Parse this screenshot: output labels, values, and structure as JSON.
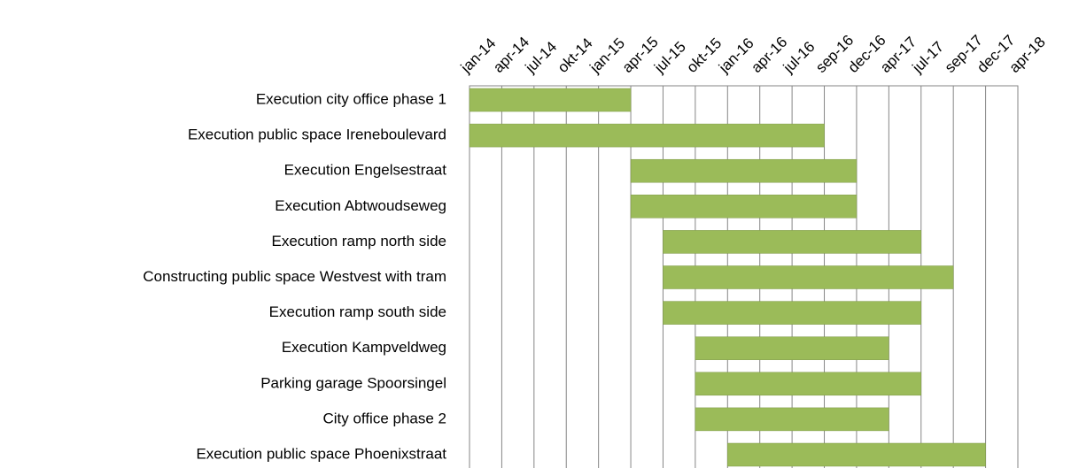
{
  "chart_data": {
    "type": "gantt",
    "categories": [
      "Execution city office phase 1",
      "Execution public space Ireneboulevard",
      "Execution Engelsestraat",
      "Execution Abtwoudseweg",
      "Execution ramp north side",
      "Constructing public space Westvest with tram",
      "Execution ramp south side",
      "Execution Kampveldweg",
      "Parking garage Spoorsingel",
      "City office phase 2",
      "Execution public space Phoenixstraat"
    ],
    "start": [
      0,
      0,
      5,
      5,
      6,
      6,
      6,
      7,
      7,
      7,
      8
    ],
    "end": [
      5,
      11,
      12,
      12,
      14,
      15,
      14,
      13,
      14,
      13,
      16
    ],
    "color": "#9bbb59",
    "xlim": [
      0,
      17
    ],
    "xticks": [
      {
        "value": 0,
        "label": "jan-14"
      },
      {
        "value": 1,
        "label": "apr-14"
      },
      {
        "value": 2,
        "label": "jul-14"
      },
      {
        "value": 3,
        "label": "okt-14"
      },
      {
        "value": 4,
        "label": "jan-15"
      },
      {
        "value": 5,
        "label": "apr-15"
      },
      {
        "value": 6,
        "label": "jul-15"
      },
      {
        "value": 7,
        "label": "okt-15"
      },
      {
        "value": 8,
        "label": "jan-16"
      },
      {
        "value": 9,
        "label": "apr-16"
      },
      {
        "value": 10,
        "label": "jul-16"
      },
      {
        "value": 11,
        "label": "sep-16"
      },
      {
        "value": 12,
        "label": "dec-16"
      },
      {
        "value": 13,
        "label": "apr-17"
      },
      {
        "value": 14,
        "label": "jul-17"
      },
      {
        "value": 15,
        "label": "sep-17"
      },
      {
        "value": 16,
        "label": "dec-17"
      },
      {
        "value": 17,
        "label": "apr-18"
      }
    ],
    "grid": true
  }
}
